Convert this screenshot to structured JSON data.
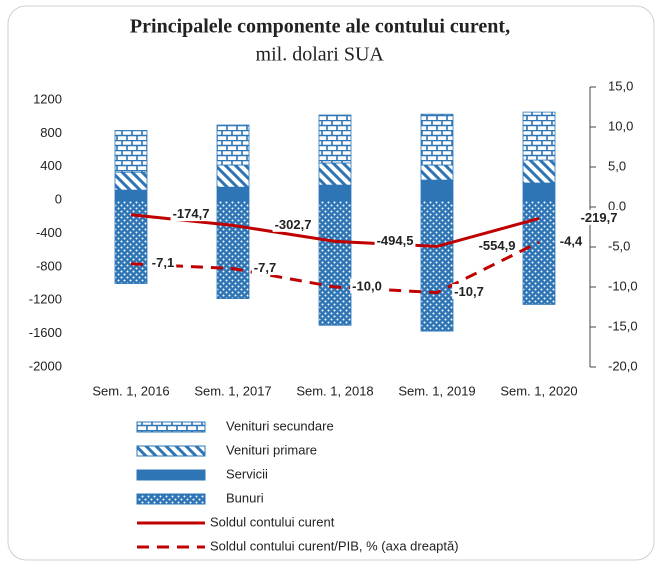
{
  "chart_data": {
    "type": "bar",
    "title": "Principalele componente ale contului curent,",
    "subtitle": "mil. dolari SUA",
    "categories": [
      "Sem. 1, 2016",
      "Sem. 1, 2017",
      "Sem. 1, 2018",
      "Sem. 1, 2019",
      "Sem. 1, 2020"
    ],
    "ylim": [
      -2000,
      1200
    ],
    "yticks": [
      -2000,
      -1600,
      -1200,
      -800,
      -400,
      0,
      400,
      800,
      1200
    ],
    "y2lim": [
      -20,
      15
    ],
    "y2ticks": [
      {
        "value": -20,
        "label": "-20,0"
      },
      {
        "value": -15,
        "label": "-15,0"
      },
      {
        "value": -10,
        "label": "-10,0"
      },
      {
        "value": -5,
        "label": "-5,0"
      },
      {
        "value": 0,
        "label": "0,0"
      },
      {
        "value": 5,
        "label": "5,0"
      },
      {
        "value": 10,
        "label": "10,0"
      },
      {
        "value": 15,
        "label": "15,0"
      }
    ],
    "series": [
      {
        "name": "Venituri secundare",
        "type": "bar",
        "pattern": "bricks",
        "color": "#2e75b6",
        "values": [
          500,
          480,
          575,
          610,
          575
        ]
      },
      {
        "name": "Venituri primare",
        "type": "bar",
        "pattern": "diagonal",
        "color": "#2e75b6",
        "values": [
          215,
          265,
          265,
          180,
          275
        ]
      },
      {
        "name": "Servicii",
        "type": "bar",
        "pattern": "solid",
        "color": "#2e75b6",
        "values": [
          120,
          155,
          180,
          240,
          205
        ]
      },
      {
        "name": "Bunuri",
        "type": "bar",
        "pattern": "dots",
        "color": "#2e75b6",
        "values": [
          -1000,
          -1180,
          -1500,
          -1570,
          -1250
        ]
      },
      {
        "name": "Soldul contului curent",
        "type": "line",
        "color": "#c00000",
        "values": [
          -174.7,
          -302.7,
          -494.5,
          -554.9,
          -219.7
        ],
        "value_labels": [
          "-174,7",
          "-302,7",
          "-494,5",
          "-554,9",
          "-219,7"
        ]
      },
      {
        "name": "Soldul contului curent/PIB, % (axa dreaptă)",
        "type": "line",
        "dash": true,
        "axis": "y2",
        "color": "#c00000",
        "values": [
          -7.1,
          -7.7,
          -10.0,
          -10.7,
          -4.4
        ],
        "value_labels": [
          "-7,1",
          "-7,7",
          "-10,0",
          "-10,7",
          "-4,4"
        ]
      }
    ]
  }
}
